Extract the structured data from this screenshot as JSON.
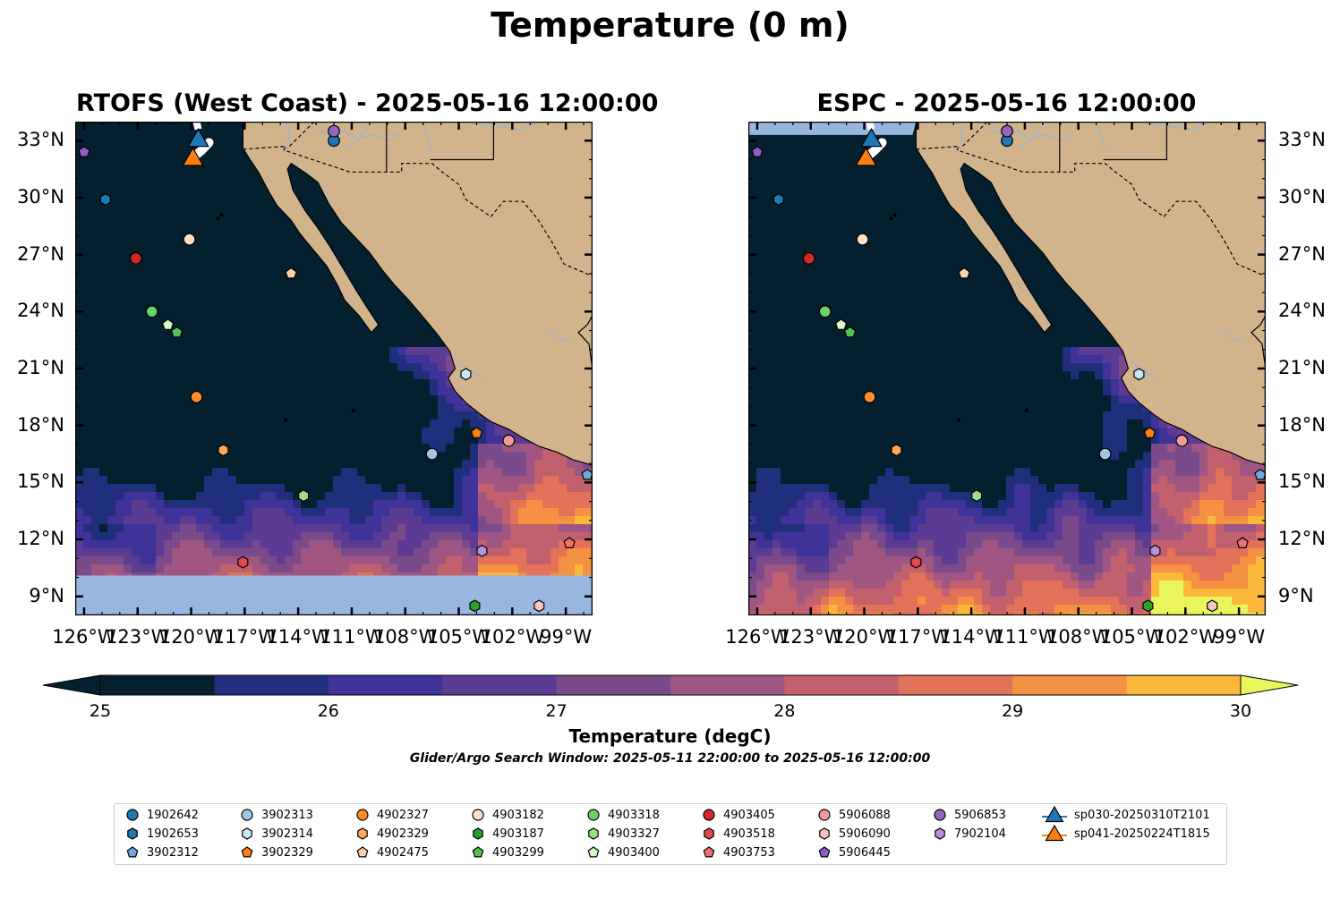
{
  "figure": {
    "title": "Temperature (0 m)",
    "search_window": "Glider/Argo Search Window: 2025-05-11 22:00:00 to 2025-05-16 12:00:00"
  },
  "panels": [
    {
      "title": "RTOFS (West Coast) - 2025-05-16 12:00:00",
      "model": "RTOFS",
      "has_south_mask": true
    },
    {
      "title": "ESPC - 2025-05-16 12:00:00",
      "model": "ESPC",
      "has_north_mask": true
    }
  ],
  "map": {
    "lon_labels": [
      "126°W",
      "123°W",
      "120°W",
      "117°W",
      "114°W",
      "111°W",
      "108°W",
      "105°W",
      "102°W",
      "99°W"
    ],
    "lon_values": [
      -126,
      -123,
      -120,
      -117,
      -114,
      -111,
      -108,
      -105,
      -102,
      -99
    ],
    "lat_labels": [
      "33°N",
      "30°N",
      "27°N",
      "24°N",
      "21°N",
      "18°N",
      "15°N",
      "12°N",
      "9°N"
    ],
    "lat_values": [
      33,
      30,
      27,
      24,
      21,
      18,
      15,
      12,
      9
    ],
    "lon_range": [
      -126.5,
      -97.5
    ],
    "lat_range": [
      8,
      34
    ],
    "land_color": "#d2b48c",
    "ocean_cold_color": "#04202f",
    "mask_color": "#98b6df",
    "river_color": "#9db5cf"
  },
  "colorbar": {
    "label": "Temperature (degC)",
    "tick_labels": [
      "25",
      "26",
      "27",
      "28",
      "29",
      "30"
    ],
    "tick_values": [
      25,
      26,
      27,
      28,
      29,
      30
    ],
    "vmin": 25,
    "vmax": 30,
    "extend": "both",
    "colors": [
      "#04202f",
      "#1f2f7c",
      "#3f3299",
      "#5b3c92",
      "#7b4a8a",
      "#a05682",
      "#c3606e",
      "#e2725a",
      "#f49142",
      "#fbb83a"
    ],
    "under_color": "#04202f",
    "over_color": "#e8f65b"
  },
  "legend": {
    "items": [
      {
        "label": "1902642",
        "color": "#1f77b4",
        "shape": "circle",
        "lon": -112,
        "lat": 33
      },
      {
        "label": "1902653",
        "color": "#1f77b4",
        "shape": "hexagon",
        "lon": -124.8,
        "lat": 29.9
      },
      {
        "label": "3902312",
        "color": "#6fa8dc",
        "shape": "pentagon",
        "lon": -97.8,
        "lat": 15.4
      },
      {
        "label": "3902313",
        "color": "#9ecae1",
        "shape": "circle",
        "lon": -106.5,
        "lat": 16.5
      },
      {
        "label": "3902314",
        "color": "#c6e9f7",
        "shape": "hexagon",
        "lon": -104.6,
        "lat": 20.7
      },
      {
        "label": "3902329",
        "color": "#ff7f0e",
        "shape": "pentagon",
        "lon": -104,
        "lat": 17.6
      },
      {
        "label": "4902327",
        "color": "#ff8c2a",
        "shape": "circle",
        "lon": -119.7,
        "lat": 19.5
      },
      {
        "label": "4902329",
        "color": "#ffa659",
        "shape": "hexagon",
        "lon": -118.2,
        "lat": 16.7
      },
      {
        "label": "4902475",
        "color": "#ffd0a6",
        "shape": "pentagon",
        "lon": -114.4,
        "lat": 26
      },
      {
        "label": "4903182",
        "color": "#fde0c8",
        "shape": "circle",
        "lon": -120.1,
        "lat": 27.8
      },
      {
        "label": "4903187",
        "color": "#2ca02c",
        "shape": "hexagon",
        "lon": -104.1,
        "lat": 8.5
      },
      {
        "label": "4903299",
        "color": "#55c255",
        "shape": "pentagon",
        "lon": -120.8,
        "lat": 22.9
      },
      {
        "label": "4903318",
        "color": "#6ccf6c",
        "shape": "circle",
        "lon": -122.2,
        "lat": 24
      },
      {
        "label": "4903327",
        "color": "#98df8a",
        "shape": "hexagon",
        "lon": -113.7,
        "lat": 14.3
      },
      {
        "label": "4903400",
        "color": "#d9f8c8",
        "shape": "pentagon",
        "lon": -121.3,
        "lat": 23.3
      },
      {
        "label": "4903405",
        "color": "#d62728",
        "shape": "circle",
        "lon": -123.1,
        "lat": 26.8
      },
      {
        "label": "4903518",
        "color": "#e04a4a",
        "shape": "hexagon",
        "lon": -117.1,
        "lat": 10.8
      },
      {
        "label": "4903753",
        "color": "#f07070",
        "shape": "pentagon",
        "lon": -98.8,
        "lat": 11.8
      },
      {
        "label": "5906088",
        "color": "#f29a9a",
        "shape": "circle",
        "lon": -102.2,
        "lat": 17.2
      },
      {
        "label": "5906090",
        "color": "#f9c4bf",
        "shape": "hexagon",
        "lon": -100.5,
        "lat": 8.5
      },
      {
        "label": "5906445",
        "color": "#8e5cc4",
        "shape": "pentagon",
        "lon": -126,
        "lat": 32.4
      },
      {
        "label": "5906853",
        "color": "#9467bd",
        "shape": "circle",
        "lon": -112,
        "lat": 33.5
      },
      {
        "label": "7902104",
        "color": "#b393dc",
        "shape": "hexagon",
        "lon": -103.7,
        "lat": 11.4
      },
      {
        "label": "sp030-20250310T2101",
        "color": "#1f77b4",
        "shape": "triangle",
        "lon": -119.6,
        "lat": 33
      },
      {
        "label": "sp041-20250224T1815",
        "color": "#ff7f0e",
        "shape": "triangle",
        "lon": -119.9,
        "lat": 32
      }
    ]
  }
}
